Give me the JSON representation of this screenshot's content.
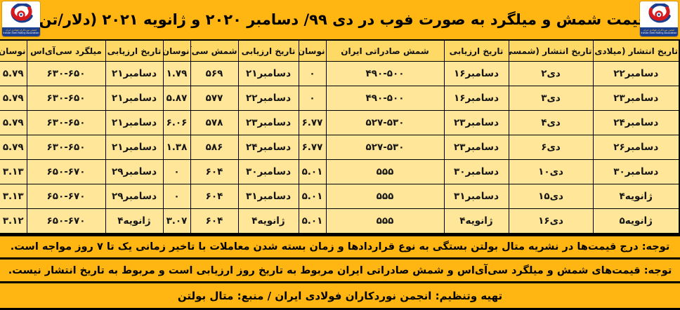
{
  "title": "قیمت شمش و میلگرد به صورت فوب در دی ۹۹/ دسامبر  ۲۰۲۰ و ژانویه ۲۰۲۱ (دلار/تن)",
  "logo": {
    "name": "iranian-steel-rolling-association-logo",
    "line1_fa": "انجمن نوردکاران فولادی ایران",
    "line2_en": "Iranian Steel Rolling Association"
  },
  "colors": {
    "bar_orange": "#FFB512",
    "header_cell": "#FFD966",
    "data_cell": "#FFE699",
    "logo_blue": "#1B3F8F",
    "logo_red": "#D6191F",
    "border": "#000000"
  },
  "table": {
    "columns": [
      "تاریخ انتشار (میلادی)",
      "تاریخ انتشار (شمسی)",
      "تاریخ ارزیابی",
      "شمش صادراتی ایران",
      "نوسان",
      "تاریخ ارزیابی",
      "شمش سی‌آی‌اس",
      "نوسان",
      "تاریخ ارزیابی",
      "میلگرد سی‌آی‌اس",
      "نوسان"
    ],
    "rows": [
      [
        "۲۲‎دسامبر",
        "۲‎دی",
        "۱۶‎دسامبر",
        "۴۹۰-۵۰۰",
        "۰",
        "۲۱‎دسامبر",
        "۵۶۹",
        "۱.۷۹",
        "۲۱‎دسامبر",
        "۶۳۰-۶۵۰",
        "۵.۷۹"
      ],
      [
        "۲۳‎دسامبر",
        "۳‎دی",
        "۱۶‎دسامبر",
        "۴۹۰-۵۰۰",
        "۰",
        "۲۲‎دسامبر",
        "۵۷۷",
        "۵.۸۷",
        "۲۱‎دسامبر",
        "۶۳۰-۶۵۰",
        "۵.۷۹"
      ],
      [
        "۲۴‎دسامبر",
        "۴‎دی",
        "۲۳‎دسامبر",
        "۵۲۷-۵۳۰",
        "۶.۷۷",
        "۲۳‎دسامبر",
        "۵۷۸",
        "۶.۰۶",
        "۲۱‎دسامبر",
        "۶۳۰-۶۵۰",
        "۵.۷۹"
      ],
      [
        "۲۶‎دسامبر",
        "۶‎دی",
        "۲۳‎دسامبر",
        "۵۲۷-۵۳۰",
        "۶.۷۷",
        "۲۴‎دسامبر",
        "۵۸۶",
        "۱.۳۸",
        "۲۱‎دسامبر",
        "۶۳۰-۶۵۰",
        "۵.۷۹"
      ],
      [
        "۳۰‎دسامبر",
        "۱۰‎دی",
        "۳۰‎دسامبر",
        "۵۵۵",
        "۵.۰۱",
        "۳۰‎دسامبر",
        "۶۰۴",
        "۰",
        "۲۹‎دسامبر",
        "۶۵۰-۶۷۰",
        "۳.۱۳"
      ],
      [
        "۴‎ژانویه",
        "۱۵‎دی",
        "۳۱‎دسامبر",
        "۵۵۵",
        "۵.۰۱",
        "۳۱‎دسامبر",
        "۶۰۴",
        "۰",
        "۲۹‎دسامبر",
        "۶۵۰-۶۷۰",
        "۳.۱۳"
      ],
      [
        "۵‎ژانویه",
        "۱۶‎دی",
        "۴‎ژانویه",
        "۵۵۵",
        "۵.۰۱",
        "۴‎ژانویه",
        "۶۰۴",
        "۳.۰۷",
        "۴‎ژانویه",
        "۶۵۰-۶۷۰",
        "۳.۱۲"
      ]
    ]
  },
  "notes": [
    "توجه: درج قیمت‌ها در نشریه متال بولتن بستگی به نوع قراردادها و زمان بسته شدن معاملات با تاخیر زمانی یک تا ۷ روز مواجه است.",
    "توجه: قیمت‌های شمش و میلگرد سی‌آی‌اس و شمش صادراتی ایران مربوط به تاریخ روز ارزیابی است و مربوط به تاریخ انتشار نیست."
  ],
  "footer": "تهیه وتنظیم: انجمن نوردکاران فولادی ایران / منبع: متال بولتن"
}
